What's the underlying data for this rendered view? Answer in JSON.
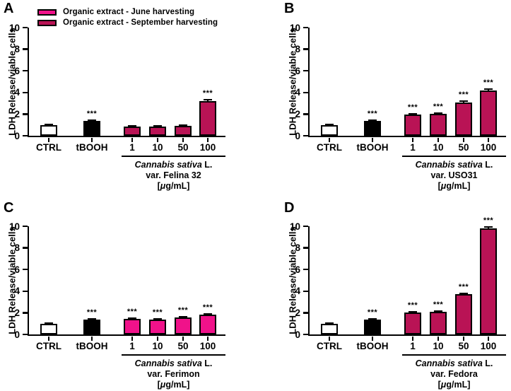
{
  "figure": {
    "legend": [
      {
        "label": "Organic extract - June harvesting",
        "color": "#F0128A"
      },
      {
        "label": "Organic extract - September harvesting",
        "color": "#B91355"
      }
    ]
  },
  "chart_data": [
    {
      "panel": "A",
      "type": "bar",
      "ylabel": "LDH Release/viable cells",
      "ylim": [
        0,
        10
      ],
      "yticks": [
        0,
        2,
        4,
        6,
        8,
        10
      ],
      "categories": [
        "CTRL",
        "tBOOH",
        "1",
        "10",
        "50",
        "100"
      ],
      "values": [
        1.0,
        1.4,
        0.85,
        0.88,
        0.9,
        3.2
      ],
      "errors": [
        0.06,
        0.07,
        0.05,
        0.05,
        0.06,
        0.12
      ],
      "significance": [
        "",
        "***",
        "",
        "",
        "",
        "***"
      ],
      "bar_colors": [
        "#FFFFFF",
        "#000000",
        "#B91355",
        "#B91355",
        "#B91355",
        "#B91355"
      ],
      "series_color": "#B91355",
      "group_categories": [
        "1",
        "10",
        "50",
        "100"
      ],
      "group_caption": {
        "species_italic": "Cannabis sativa",
        "species_suffix": " L.",
        "variety": "var. Felina 32",
        "unit_pre": "[",
        "unit_mu": "μ",
        "unit_post": "g/mL]"
      }
    },
    {
      "panel": "B",
      "type": "bar",
      "ylabel": "LDH Release/viable cells",
      "ylim": [
        0,
        10
      ],
      "yticks": [
        0,
        2,
        4,
        6,
        8,
        10
      ],
      "categories": [
        "CTRL",
        "tBOOH",
        "1",
        "10",
        "50",
        "100"
      ],
      "values": [
        1.0,
        1.4,
        1.95,
        2.0,
        3.1,
        4.2
      ],
      "errors": [
        0.06,
        0.07,
        0.08,
        0.08,
        0.1,
        0.12
      ],
      "significance": [
        "",
        "***",
        "***",
        "***",
        "***",
        "***"
      ],
      "bar_colors": [
        "#FFFFFF",
        "#000000",
        "#B91355",
        "#B91355",
        "#B91355",
        "#B91355"
      ],
      "series_color": "#B91355",
      "group_categories": [
        "1",
        "10",
        "50",
        "100"
      ],
      "group_caption": {
        "species_italic": "Cannabis sativa",
        "species_suffix": " L.",
        "variety": "var. USO31",
        "unit_pre": "[",
        "unit_mu": "μ",
        "unit_post": "g/mL]"
      }
    },
    {
      "panel": "C",
      "type": "bar",
      "ylabel": "LDH Release/viable cells",
      "ylim": [
        0,
        10
      ],
      "yticks": [
        0,
        2,
        4,
        6,
        8,
        10
      ],
      "categories": [
        "CTRL",
        "tBOOH",
        "1",
        "10",
        "50",
        "100"
      ],
      "values": [
        1.0,
        1.4,
        1.42,
        1.38,
        1.58,
        1.82
      ],
      "errors": [
        0.05,
        0.06,
        0.06,
        0.06,
        0.05,
        0.06
      ],
      "significance": [
        "",
        "***",
        "***",
        "***",
        "***",
        "***"
      ],
      "bar_colors": [
        "#FFFFFF",
        "#000000",
        "#F0128A",
        "#F0128A",
        "#F0128A",
        "#F0128A"
      ],
      "series_color": "#F0128A",
      "group_categories": [
        "1",
        "10",
        "50",
        "100"
      ],
      "group_caption": {
        "species_italic": "Cannabis sativa",
        "species_suffix": " L.",
        "variety": "var. Ferimon",
        "unit_pre": "[",
        "unit_mu": "μ",
        "unit_post": "g/mL]"
      }
    },
    {
      "panel": "D",
      "type": "bar",
      "ylabel": "LDH Release/viable cells",
      "ylim": [
        0,
        10
      ],
      "yticks": [
        0,
        2,
        4,
        6,
        8,
        10
      ],
      "categories": [
        "CTRL",
        "tBOOH",
        "1",
        "10",
        "50",
        "100"
      ],
      "values": [
        1.0,
        1.4,
        2.0,
        2.1,
        3.7,
        9.8
      ],
      "errors": [
        0.05,
        0.06,
        0.07,
        0.08,
        0.08,
        0.15
      ],
      "significance": [
        "",
        "***",
        "***",
        "***",
        "***",
        "***"
      ],
      "bar_colors": [
        "#FFFFFF",
        "#000000",
        "#B91355",
        "#B91355",
        "#B91355",
        "#B91355"
      ],
      "series_color": "#B91355",
      "group_categories": [
        "1",
        "10",
        "50",
        "100"
      ],
      "group_caption": {
        "species_italic": "Cannabis sativa",
        "species_suffix": " L.",
        "variety": "var. Fedora",
        "unit_pre": "[",
        "unit_mu": "μ",
        "unit_post": "g/mL]"
      }
    }
  ]
}
